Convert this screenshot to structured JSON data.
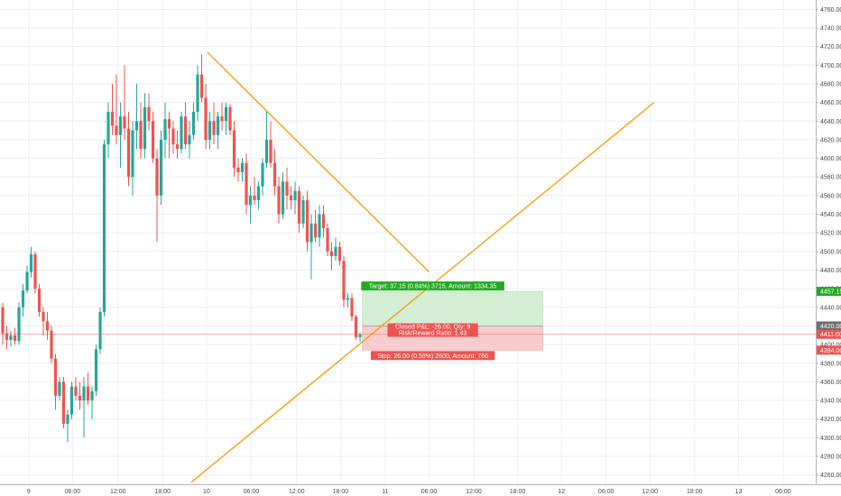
{
  "chart_data": {
    "type": "candlestick",
    "title": "",
    "xlabel": "",
    "ylabel": "",
    "ylim": [
      4250,
      4770
    ],
    "grid": true,
    "y_ticks": [
      4260,
      4280,
      4300,
      4320,
      4340,
      4360,
      4380,
      4400,
      4420,
      4440,
      4460,
      4480,
      4500,
      4520,
      4540,
      4560,
      4580,
      4600,
      4620,
      4640,
      4660,
      4680,
      4700,
      4720,
      4740,
      4760
    ],
    "x_ticks": [
      {
        "label": "9",
        "t": 3.2
      },
      {
        "label": "06:00",
        "t": 8.6
      },
      {
        "label": "12:00",
        "t": 14.2
      },
      {
        "label": "18:00",
        "t": 19.7
      },
      {
        "label": "10",
        "t": 25.1
      },
      {
        "label": "06:00",
        "t": 30.6
      },
      {
        "label": "12:00",
        "t": 36.2
      },
      {
        "label": "18:00",
        "t": 41.6
      },
      {
        "label": "11",
        "t": 47.1
      },
      {
        "label": "06:00",
        "t": 52.5
      },
      {
        "label": "12:00",
        "t": 58.0
      },
      {
        "label": "18:00",
        "t": 63.4
      },
      {
        "label": "12",
        "t": 68.8
      },
      {
        "label": "06:00",
        "t": 74.3
      },
      {
        "label": "12:00",
        "t": 79.7
      },
      {
        "label": "18:00",
        "t": 85.2
      },
      {
        "label": "13",
        "t": 90.6
      },
      {
        "label": "06:00",
        "t": 96.1
      }
    ],
    "colors": {
      "up": "#26a69a",
      "down": "#ef5350",
      "trendline": "#f59b00",
      "target_fill": "#d3eed3",
      "stop_fill": "#f7cccc"
    },
    "candles": [
      {
        "t": 0,
        "o": 4440,
        "h": 4445,
        "l": 4400,
        "c": 4412
      },
      {
        "t": 0.5,
        "o": 4412,
        "h": 4420,
        "l": 4395,
        "c": 4405
      },
      {
        "t": 1,
        "o": 4405,
        "h": 4415,
        "l": 4398,
        "c": 4410
      },
      {
        "t": 1.5,
        "o": 4410,
        "h": 4418,
        "l": 4400,
        "c": 4404
      },
      {
        "t": 2,
        "o": 4404,
        "h": 4445,
        "l": 4400,
        "c": 4440
      },
      {
        "t": 2.5,
        "o": 4440,
        "h": 4465,
        "l": 4430,
        "c": 4458
      },
      {
        "t": 3,
        "o": 4458,
        "h": 4485,
        "l": 4455,
        "c": 4478
      },
      {
        "t": 3.5,
        "o": 4478,
        "h": 4505,
        "l": 4472,
        "c": 4497
      },
      {
        "t": 4,
        "o": 4497,
        "h": 4500,
        "l": 4455,
        "c": 4460
      },
      {
        "t": 4.5,
        "o": 4460,
        "h": 4465,
        "l": 4430,
        "c": 4435
      },
      {
        "t": 5,
        "o": 4435,
        "h": 4440,
        "l": 4410,
        "c": 4425
      },
      {
        "t": 5.5,
        "o": 4425,
        "h": 4435,
        "l": 4405,
        "c": 4415
      },
      {
        "t": 6,
        "o": 4415,
        "h": 4420,
        "l": 4380,
        "c": 4385
      },
      {
        "t": 6.5,
        "o": 4385,
        "h": 4390,
        "l": 4330,
        "c": 4345
      },
      {
        "t": 7,
        "o": 4345,
        "h": 4365,
        "l": 4340,
        "c": 4360
      },
      {
        "t": 7.5,
        "o": 4360,
        "h": 4365,
        "l": 4310,
        "c": 4315
      },
      {
        "t": 8,
        "o": 4315,
        "h": 4330,
        "l": 4295,
        "c": 4325
      },
      {
        "t": 8.5,
        "o": 4325,
        "h": 4360,
        "l": 4320,
        "c": 4355
      },
      {
        "t": 9,
        "o": 4355,
        "h": 4365,
        "l": 4340,
        "c": 4345
      },
      {
        "t": 9.5,
        "o": 4345,
        "h": 4360,
        "l": 4330,
        "c": 4340
      },
      {
        "t": 10,
        "o": 4340,
        "h": 4365,
        "l": 4300,
        "c": 4355
      },
      {
        "t": 10.5,
        "o": 4355,
        "h": 4370,
        "l": 4335,
        "c": 4340
      },
      {
        "t": 11,
        "o": 4340,
        "h": 4355,
        "l": 4320,
        "c": 4350
      },
      {
        "t": 11.5,
        "o": 4350,
        "h": 4400,
        "l": 4345,
        "c": 4395
      },
      {
        "t": 12,
        "o": 4395,
        "h": 4440,
        "l": 4390,
        "c": 4435
      },
      {
        "t": 12.5,
        "o": 4435,
        "h": 4620,
        "l": 4430,
        "c": 4615
      },
      {
        "t": 13,
        "o": 4615,
        "h": 4660,
        "l": 4600,
        "c": 4650
      },
      {
        "t": 13.5,
        "o": 4650,
        "h": 4680,
        "l": 4625,
        "c": 4635
      },
      {
        "t": 14,
        "o": 4635,
        "h": 4690,
        "l": 4615,
        "c": 4625
      },
      {
        "t": 14.5,
        "o": 4625,
        "h": 4660,
        "l": 4590,
        "c": 4645
      },
      {
        "t": 15,
        "o": 4645,
        "h": 4700,
        "l": 4620,
        "c": 4632
      },
      {
        "t": 15.5,
        "o": 4632,
        "h": 4650,
        "l": 4570,
        "c": 4580
      },
      {
        "t": 16,
        "o": 4580,
        "h": 4640,
        "l": 4560,
        "c": 4630
      },
      {
        "t": 16.5,
        "o": 4630,
        "h": 4680,
        "l": 4610,
        "c": 4640
      },
      {
        "t": 17,
        "o": 4640,
        "h": 4660,
        "l": 4600,
        "c": 4610
      },
      {
        "t": 17.5,
        "o": 4610,
        "h": 4670,
        "l": 4600,
        "c": 4655
      },
      {
        "t": 18,
        "o": 4655,
        "h": 4670,
        "l": 4630,
        "c": 4640
      },
      {
        "t": 18.5,
        "o": 4640,
        "h": 4650,
        "l": 4595,
        "c": 4600
      },
      {
        "t": 19,
        "o": 4600,
        "h": 4610,
        "l": 4510,
        "c": 4560
      },
      {
        "t": 19.5,
        "o": 4560,
        "h": 4630,
        "l": 4550,
        "c": 4620
      },
      {
        "t": 20,
        "o": 4620,
        "h": 4660,
        "l": 4600,
        "c": 4642
      },
      {
        "t": 20.5,
        "o": 4642,
        "h": 4650,
        "l": 4600,
        "c": 4632
      },
      {
        "t": 21,
        "o": 4632,
        "h": 4640,
        "l": 4605,
        "c": 4615
      },
      {
        "t": 21.5,
        "o": 4615,
        "h": 4630,
        "l": 4600,
        "c": 4610
      },
      {
        "t": 22,
        "o": 4610,
        "h": 4650,
        "l": 4605,
        "c": 4645
      },
      {
        "t": 22.5,
        "o": 4645,
        "h": 4660,
        "l": 4610,
        "c": 4615
      },
      {
        "t": 23,
        "o": 4615,
        "h": 4640,
        "l": 4600,
        "c": 4625
      },
      {
        "t": 23.5,
        "o": 4625,
        "h": 4660,
        "l": 4620,
        "c": 4650
      },
      {
        "t": 24,
        "o": 4650,
        "h": 4700,
        "l": 4640,
        "c": 4690
      },
      {
        "t": 24.5,
        "o": 4690,
        "h": 4712,
        "l": 4660,
        "c": 4665
      },
      {
        "t": 25,
        "o": 4665,
        "h": 4680,
        "l": 4610,
        "c": 4620
      },
      {
        "t": 25.5,
        "o": 4620,
        "h": 4650,
        "l": 4610,
        "c": 4640
      },
      {
        "t": 26,
        "o": 4640,
        "h": 4660,
        "l": 4615,
        "c": 4625
      },
      {
        "t": 26.5,
        "o": 4625,
        "h": 4650,
        "l": 4610,
        "c": 4645
      },
      {
        "t": 27,
        "o": 4645,
        "h": 4660,
        "l": 4630,
        "c": 4640
      },
      {
        "t": 27.5,
        "o": 4640,
        "h": 4660,
        "l": 4625,
        "c": 4655
      },
      {
        "t": 28,
        "o": 4655,
        "h": 4658,
        "l": 4625,
        "c": 4630
      },
      {
        "t": 28.5,
        "o": 4630,
        "h": 4640,
        "l": 4580,
        "c": 4590
      },
      {
        "t": 29,
        "o": 4590,
        "h": 4600,
        "l": 4575,
        "c": 4585
      },
      {
        "t": 29.5,
        "o": 4585,
        "h": 4600,
        "l": 4575,
        "c": 4595
      },
      {
        "t": 30,
        "o": 4595,
        "h": 4605,
        "l": 4540,
        "c": 4550
      },
      {
        "t": 30.5,
        "o": 4550,
        "h": 4570,
        "l": 4530,
        "c": 4560
      },
      {
        "t": 31,
        "o": 4560,
        "h": 4580,
        "l": 4550,
        "c": 4555
      },
      {
        "t": 31.5,
        "o": 4555,
        "h": 4575,
        "l": 4545,
        "c": 4570
      },
      {
        "t": 32,
        "o": 4570,
        "h": 4600,
        "l": 4560,
        "c": 4595
      },
      {
        "t": 32.5,
        "o": 4595,
        "h": 4650,
        "l": 4590,
        "c": 4620
      },
      {
        "t": 33,
        "o": 4620,
        "h": 4640,
        "l": 4590,
        "c": 4595
      },
      {
        "t": 33.5,
        "o": 4595,
        "h": 4610,
        "l": 4560,
        "c": 4570
      },
      {
        "t": 34,
        "o": 4570,
        "h": 4580,
        "l": 4530,
        "c": 4540
      },
      {
        "t": 34.5,
        "o": 4540,
        "h": 4585,
        "l": 4535,
        "c": 4575
      },
      {
        "t": 35,
        "o": 4575,
        "h": 4590,
        "l": 4545,
        "c": 4560
      },
      {
        "t": 35.5,
        "o": 4560,
        "h": 4570,
        "l": 4545,
        "c": 4555
      },
      {
        "t": 36,
        "o": 4555,
        "h": 4575,
        "l": 4540,
        "c": 4565
      },
      {
        "t": 36.5,
        "o": 4565,
        "h": 4570,
        "l": 4520,
        "c": 4530
      },
      {
        "t": 37,
        "o": 4530,
        "h": 4560,
        "l": 4525,
        "c": 4555
      },
      {
        "t": 37.5,
        "o": 4555,
        "h": 4565,
        "l": 4500,
        "c": 4510
      },
      {
        "t": 38,
        "o": 4510,
        "h": 4540,
        "l": 4470,
        "c": 4530
      },
      {
        "t": 38.5,
        "o": 4530,
        "h": 4545,
        "l": 4510,
        "c": 4515
      },
      {
        "t": 39,
        "o": 4515,
        "h": 4550,
        "l": 4505,
        "c": 4540
      },
      {
        "t": 39.5,
        "o": 4540,
        "h": 4550,
        "l": 4515,
        "c": 4525
      },
      {
        "t": 40,
        "o": 4525,
        "h": 4530,
        "l": 4495,
        "c": 4500
      },
      {
        "t": 40.5,
        "o": 4500,
        "h": 4510,
        "l": 4480,
        "c": 4495
      },
      {
        "t": 41,
        "o": 4495,
        "h": 4515,
        "l": 4490,
        "c": 4505
      },
      {
        "t": 41.5,
        "o": 4505,
        "h": 4510,
        "l": 4485,
        "c": 4490
      },
      {
        "t": 42,
        "o": 4490,
        "h": 4495,
        "l": 4440,
        "c": 4448
      },
      {
        "t": 42.5,
        "o": 4448,
        "h": 4455,
        "l": 4440,
        "c": 4450
      },
      {
        "t": 43,
        "o": 4450,
        "h": 4455,
        "l": 4425,
        "c": 4430
      },
      {
        "t": 43.5,
        "o": 4430,
        "h": 4432,
        "l": 4405,
        "c": 4408
      },
      {
        "t": 44,
        "o": 4408,
        "h": 4413,
        "l": 4403,
        "c": 4411
      }
    ],
    "trendlines": [
      {
        "x1": 25.2,
        "y1": 4714,
        "x2": 52.5,
        "y2": 4478
      },
      {
        "x1": 23.2,
        "y1": 4252,
        "x2": 80.2,
        "y2": 4660
      }
    ],
    "position": {
      "x_start": 44.3,
      "x_end": 66.5,
      "entry": 4420.0,
      "target": 4457.15,
      "stop": 4394.0,
      "target_label": "Target: 37.15 (0.84%) 3715, Amount: 1334.35",
      "stop_label": "Stop: 26.00 (0.59%) 2600, Amount: 766",
      "pnl_label": "Closed P&L: -26.00, Qty: 9",
      "rr_label": "Risk/Reward Ratio: 1.43"
    },
    "last_price": 4411.0,
    "axis_badges": [
      {
        "value": 4457.15,
        "label": "4457.15",
        "color": "#22ab22"
      },
      {
        "value": 4420.0,
        "label": "4420.00",
        "color": "#6d6d6d"
      },
      {
        "value": 4411.0,
        "label": "4411.00",
        "color": "#ef5350"
      },
      {
        "value": 4394.0,
        "label": "4394.00",
        "color": "#ef5350"
      }
    ]
  }
}
